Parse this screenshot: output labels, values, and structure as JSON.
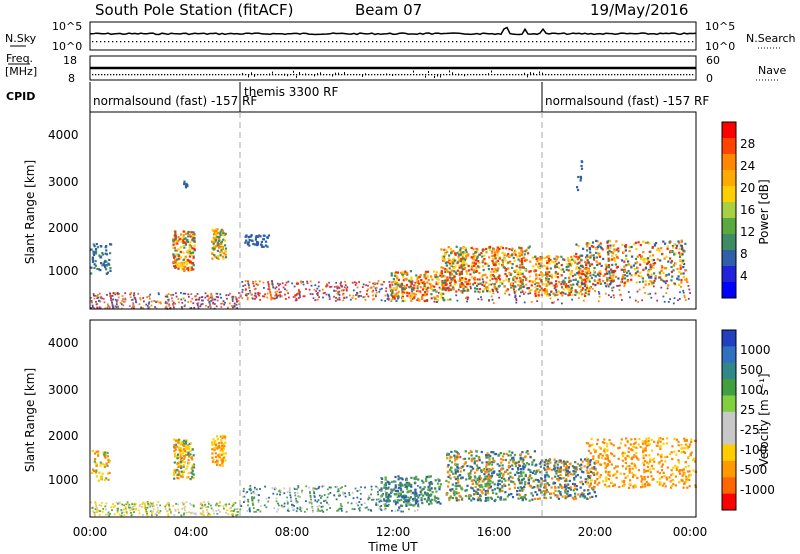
{
  "header": {
    "title": "South Pole Station (fitACF)",
    "beam": "Beam 07",
    "date": "19/May/2016"
  },
  "panels": {
    "nsky": {
      "label": "N.Sky",
      "ticks": [
        "10^5",
        "10^0"
      ],
      "right_label": "N.Search",
      "right_ticks": [
        "10^5",
        "10^0"
      ]
    },
    "freq": {
      "label": "Freq.",
      "unit": "[MHz]",
      "ticks": [
        "18",
        "8"
      ],
      "right_label": "Nave",
      "right_ticks": [
        "60",
        "0"
      ]
    },
    "cpid": {
      "label": "CPID",
      "segments": [
        {
          "text": "normalsound (fast) -157 RF"
        },
        {
          "text": "themis 3300 RF"
        },
        {
          "text": "normalsound (fast) -157 RF"
        }
      ]
    }
  },
  "chart_data": [
    {
      "type": "heatmap",
      "name": "power",
      "ylabel": "Slant Range [km]",
      "yticks": [
        "4000",
        "3000",
        "2000",
        "1000"
      ],
      "colorbar": {
        "label": "Power [dB]",
        "ticks": [
          "28",
          "24",
          "20",
          "16",
          "12",
          "8",
          "4"
        ],
        "colors": [
          "#ff0000",
          "#ff4400",
          "#ff8800",
          "#ffaa00",
          "#ffd000",
          "#a8d040",
          "#5aa840",
          "#3f8c64",
          "#2e5fa8",
          "#2222dd",
          "#0000ff"
        ]
      }
    },
    {
      "type": "heatmap",
      "name": "velocity",
      "ylabel": "Slant Range [km]",
      "yticks": [
        "4000",
        "3000",
        "2000",
        "1000"
      ],
      "colorbar": {
        "label": "Velocity [m s⁻¹]",
        "ticks": [
          "1000",
          "500",
          "100",
          "25",
          "-25",
          "-100",
          "-500",
          "-1000"
        ],
        "colors": [
          "#2040c0",
          "#3070c0",
          "#308888",
          "#40a040",
          "#80d040",
          "#c8c8c8",
          "#c8c8c8",
          "#ffcc00",
          "#ff9900",
          "#ff6600",
          "#ff0000"
        ]
      }
    }
  ],
  "xaxis": {
    "label": "Time UT",
    "ticks": [
      "00:00",
      "04:00",
      "08:00",
      "12:00",
      "16:00",
      "20:00",
      "00:00"
    ]
  },
  "colors": {
    "blue": "#2e5fa8",
    "green": "#3f8c64",
    "lightgreen": "#5aa840",
    "yellow": "#ffd000",
    "orange": "#ff8800",
    "red": "#ff2a00",
    "gray": "#c8c8c8"
  }
}
